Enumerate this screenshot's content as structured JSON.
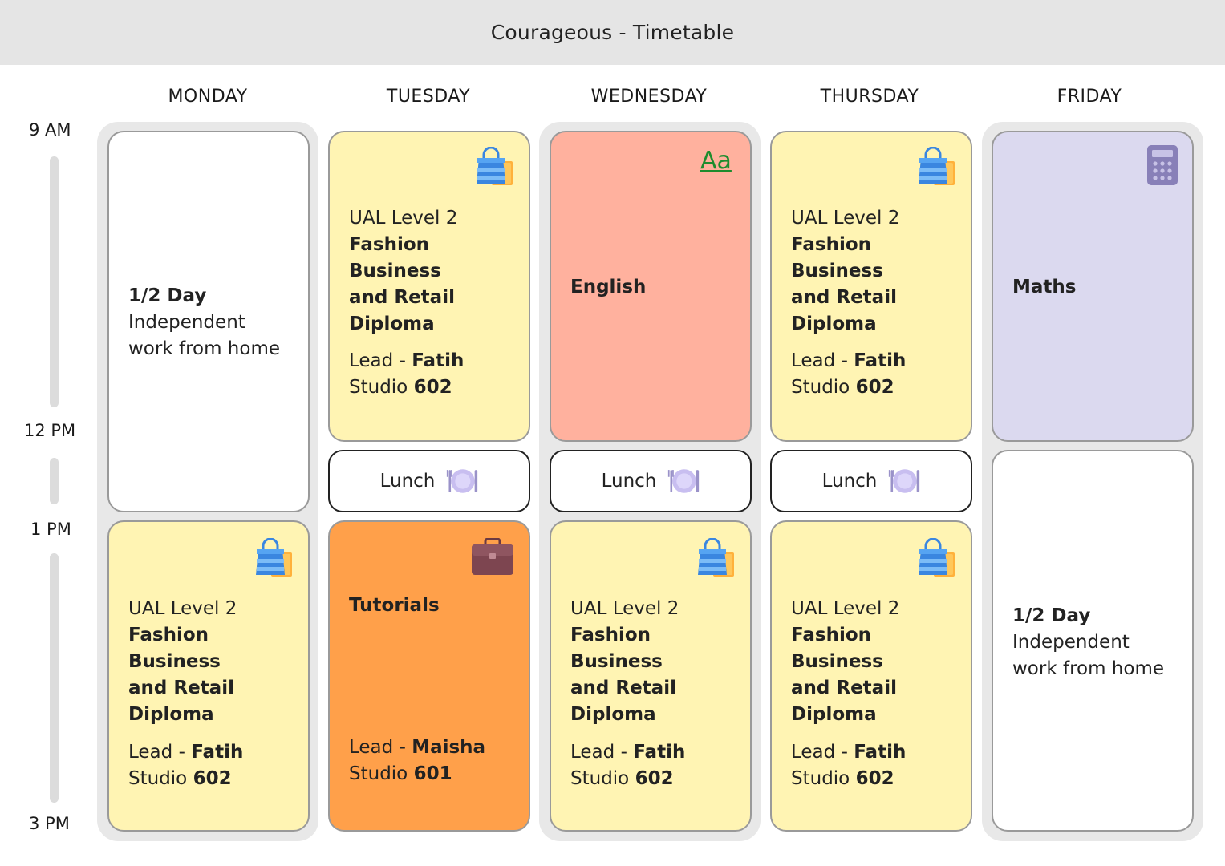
{
  "header": {
    "title": "Courageous - Timetable"
  },
  "days": [
    "MONDAY",
    "TUESDAY",
    "WEDNESDAY",
    "THURSDAY",
    "FRIDAY"
  ],
  "times": [
    "9 AM",
    "12 PM",
    "1 PM",
    "3 PM"
  ],
  "fashion": {
    "level": "UAL Level 2",
    "course_line1": "Fashion Business",
    "course_line2": "and Retail",
    "course_line3": "Diploma",
    "lead_prefix": "Lead - ",
    "lead_name": "Fatih",
    "studio_prefix": "Studio ",
    "studio_number": "602"
  },
  "half_day": {
    "title": "1/2 Day",
    "line1": "Independent",
    "line2": "work from home"
  },
  "english": {
    "title": "English",
    "icon_text": "Aa"
  },
  "maths": {
    "title": "Maths"
  },
  "tutorials": {
    "title": "Tutorials",
    "lead_prefix": "Lead - ",
    "lead_name": "Maisha",
    "studio_prefix": "Studio ",
    "studio_number": "601"
  },
  "lunch": {
    "label": "Lunch"
  },
  "colors": {
    "yellow": "#fff4b3",
    "red": "#ffb19e",
    "orange": "#ffa04a",
    "lavender": "#dbd9ef",
    "grey_column": "#e8e8e8",
    "header_bg": "#e5e5e5"
  },
  "icons": [
    "shopping-bag-icon",
    "text-aa-icon",
    "calculator-icon",
    "briefcase-icon",
    "plate-cutlery-icon"
  ]
}
